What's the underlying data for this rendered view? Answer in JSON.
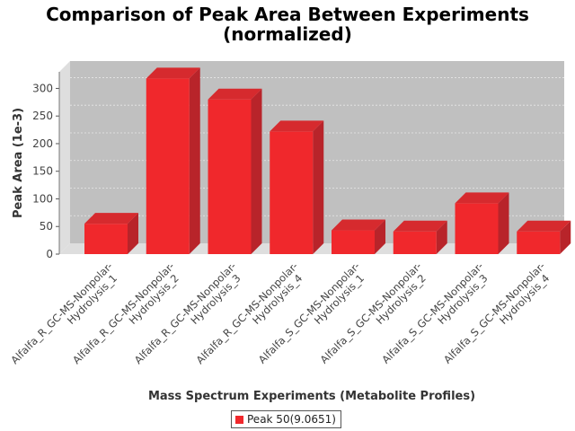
{
  "chart_data": {
    "type": "bar",
    "title_line1": "Comparison of Peak Area Between Experiments",
    "title_line2": "(normalized)",
    "xlabel": "Mass Spectrum Experiments (Metabolite Profiles)",
    "ylabel": "Peak Area (1e-3)",
    "ylim": [
      0,
      330
    ],
    "yticks": [
      0,
      50,
      100,
      150,
      200,
      250,
      300
    ],
    "grid": true,
    "legend_placement": "bottom-center",
    "categories": [
      [
        "Alfalfa_R_GC-MS-Nonpolar-",
        "Hydrolysis_1"
      ],
      [
        "Alfalfa_R_GC-MS-Nonpolar-",
        "Hydrolysis_2"
      ],
      [
        "Alfalfa_R_GC-MS-Nonpolar-",
        "Hydrolysis_3"
      ],
      [
        "Alfalfa_R_GC-MS-Nonpolar-",
        "Hydrolysis_4"
      ],
      [
        "Alfalfa_S_GC-MS-Nonpolar-",
        "Hydrolysis_1"
      ],
      [
        "Alfalfa_S_GC-MS-Nonpolar-",
        "Hydrolysis_2"
      ],
      [
        "Alfalfa_S_GC-MS-Nonpolar-",
        "Hydrolysis_3"
      ],
      [
        "Alfalfa_S_GC-MS-Nonpolar-",
        "Hydrolysis_4"
      ]
    ],
    "series": [
      {
        "name": "Peak 50(9.0651)",
        "values": [
          55,
          318,
          280,
          222,
          43,
          41,
          92,
          41
        ]
      }
    ],
    "colors": {
      "bar_front": "#f0282c",
      "bar_side": "#b8242a",
      "bar_top": "#d62a2e",
      "plot_background": "#c0c0c0",
      "plot_back_wall": "#c8c8c8",
      "plot_side_wall": "#dedede",
      "grid": "#e8e8e8"
    }
  }
}
